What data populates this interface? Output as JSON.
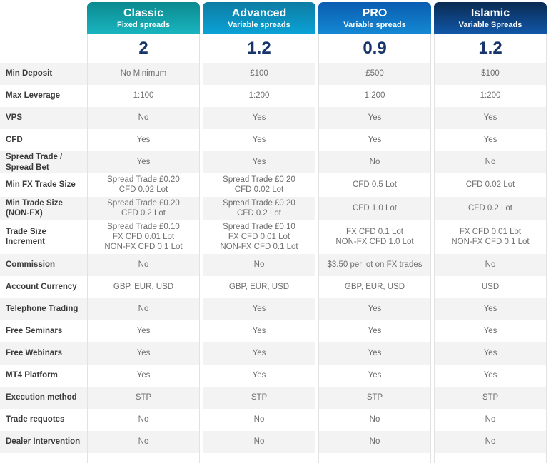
{
  "table": {
    "columns": [
      {
        "name": "Classic",
        "subtitle": "Fixed spreads",
        "spread": "2",
        "header_gradient": [
          "#0b8a8f",
          "#19b5c0"
        ]
      },
      {
        "name": "Advanced",
        "subtitle": "Variable spreads",
        "spread": "1.2",
        "header_gradient": [
          "#0e7ca3",
          "#0aa2d6"
        ]
      },
      {
        "name": "PRO",
        "subtitle": "Variable spreads",
        "spread": "0.9",
        "header_gradient": [
          "#0b5cb1",
          "#1489d3"
        ]
      },
      {
        "name": "Islamic",
        "subtitle": "Variable Spreads",
        "spread": "1.2",
        "header_gradient": [
          "#0a2a52",
          "#1158a9"
        ]
      }
    ],
    "rows": [
      {
        "label": "Min Deposit",
        "values": [
          "No Minimum",
          "£100",
          "£500",
          "$100"
        ]
      },
      {
        "label": "Max Leverage",
        "values": [
          "1:100",
          "1:200",
          "1:200",
          "1:200"
        ]
      },
      {
        "label": "VPS",
        "values": [
          "No",
          "Yes",
          "Yes",
          "Yes"
        ]
      },
      {
        "label": "CFD",
        "values": [
          "Yes",
          "Yes",
          "Yes",
          "Yes"
        ]
      },
      {
        "label": "Spread Trade /\nSpread Bet",
        "values": [
          "Yes",
          "Yes",
          "No",
          "No"
        ]
      },
      {
        "label": "Min FX Trade Size",
        "values": [
          "Spread Trade £0.20\nCFD 0.02 Lot",
          "Spread Trade £0.20\nCFD 0.02 Lot",
          "CFD 0.5 Lot",
          "CFD 0.02 Lot"
        ]
      },
      {
        "label": "Min Trade Size\n(NON-FX)",
        "values": [
          "Spread Trade £0.20\nCFD 0.2 Lot",
          "Spread Trade £0.20\nCFD 0.2 Lot",
          "CFD 1.0 Lot",
          "CFD 0.2 Lot"
        ]
      },
      {
        "label": "Trade Size\nIncrement",
        "values": [
          "Spread Trade £0.10\nFX CFD 0.01 Lot\nNON-FX CFD 0.1 Lot",
          "Spread Trade £0.10\nFX CFD 0.01 Lot\nNON-FX CFD 0.1 Lot",
          "FX CFD 0.1 Lot\nNON-FX CFD 1.0 Lot",
          "FX CFD 0.01 Lot\nNON-FX CFD 0.1 Lot"
        ]
      },
      {
        "label": "Commission",
        "values": [
          "No",
          "No",
          "$3.50 per lot on FX trades",
          "No"
        ]
      },
      {
        "label": "Account Currency",
        "values": [
          "GBP, EUR, USD",
          "GBP, EUR, USD",
          "GBP, EUR, USD",
          "USD"
        ]
      },
      {
        "label": "Telephone Trading",
        "values": [
          "No",
          "Yes",
          "Yes",
          "Yes"
        ]
      },
      {
        "label": "Free Seminars",
        "values": [
          "Yes",
          "Yes",
          "Yes",
          "Yes"
        ]
      },
      {
        "label": "Free Webinars",
        "values": [
          "Yes",
          "Yes",
          "Yes",
          "Yes"
        ]
      },
      {
        "label": "MT4 Platform",
        "values": [
          "Yes",
          "Yes",
          "Yes",
          "Yes"
        ]
      },
      {
        "label": "Execution method",
        "values": [
          "STP",
          "STP",
          "STP",
          "STP"
        ]
      },
      {
        "label": "Trade requotes",
        "values": [
          "No",
          "No",
          "No",
          "No"
        ]
      },
      {
        "label": "Dealer Intervention",
        "values": [
          "No",
          "No",
          "No",
          "No"
        ]
      }
    ]
  },
  "colors": {
    "row_stripe": "#f3f3f3",
    "card_border": "#e2e2e2",
    "label_text": "#3b3b3b",
    "value_text": "#6e6e6e",
    "spread_number_text": "#17356b"
  }
}
